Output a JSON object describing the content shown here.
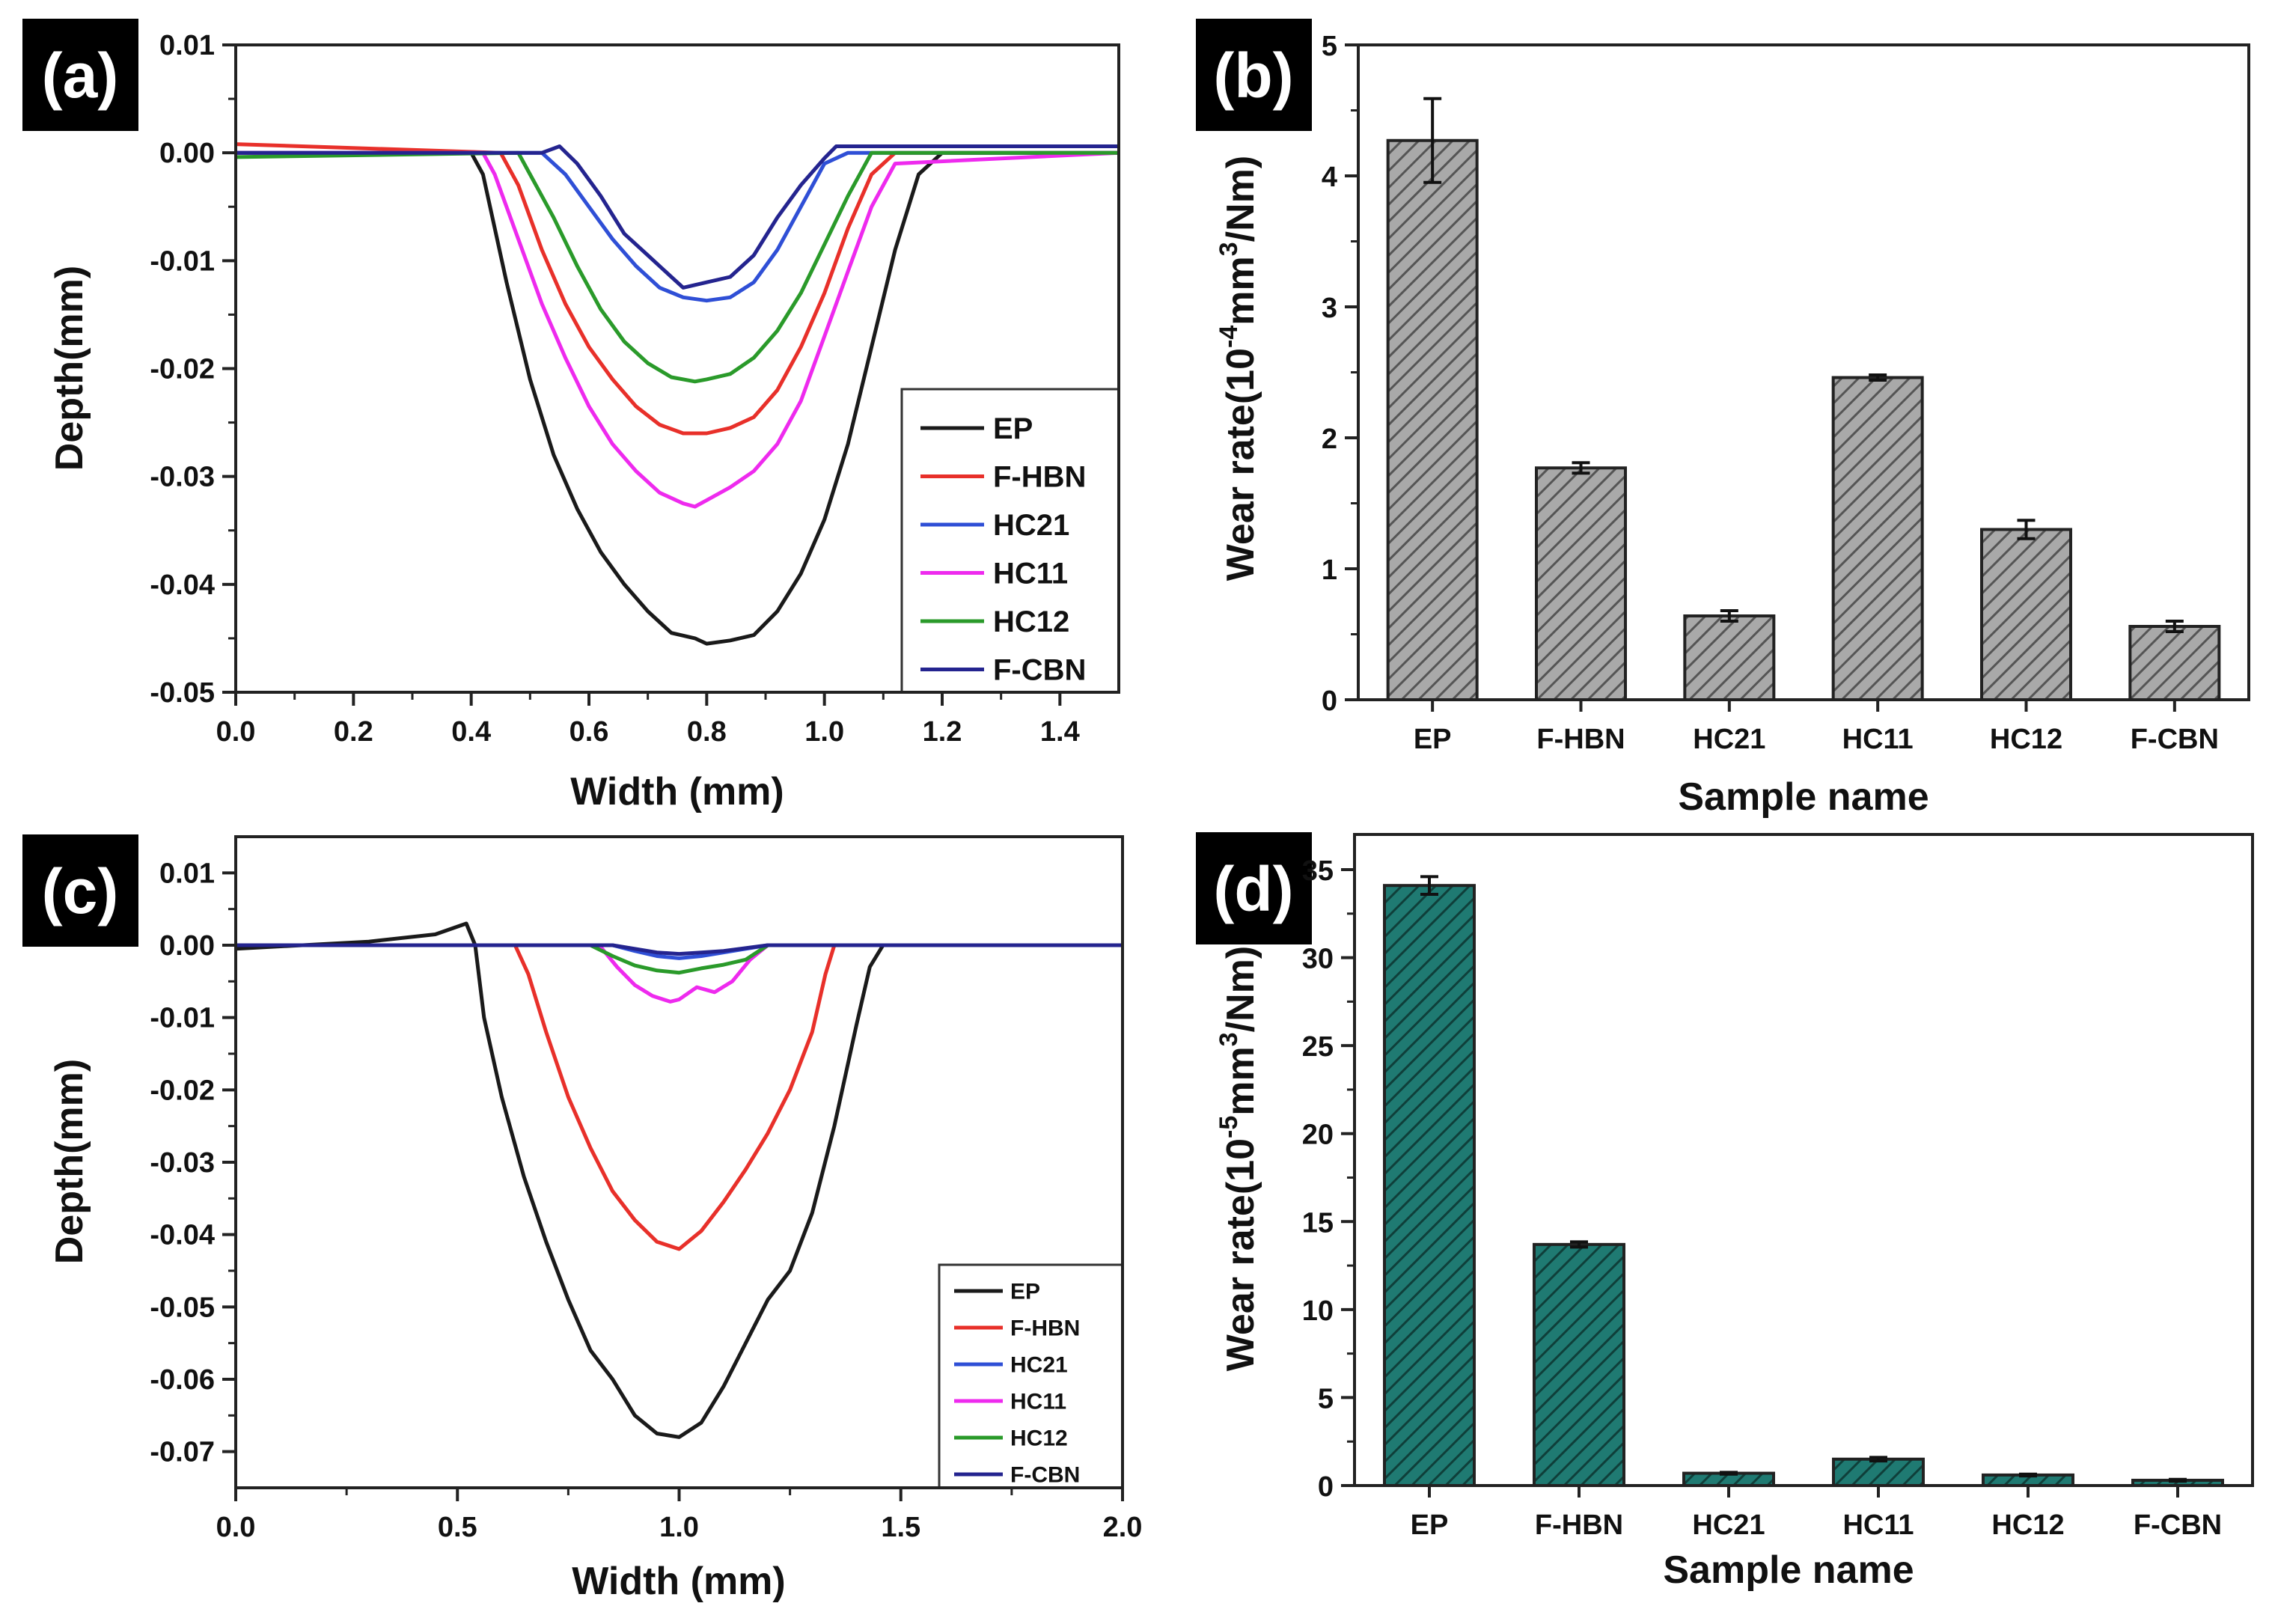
{
  "chart_data": [
    {
      "panel": "(a)",
      "type": "line",
      "xlabel": "Width (mm)",
      "ylabel": "Depth(mm)",
      "xlim": [
        0.0,
        1.5
      ],
      "ylim": [
        -0.05,
        0.01
      ],
      "xticks": [
        "0.0",
        "0.2",
        "0.4",
        "0.6",
        "0.8",
        "1.0",
        "1.2",
        "1.4"
      ],
      "yticks": [
        "0.01",
        "0.00",
        "-0.01",
        "-0.02",
        "-0.03",
        "-0.04",
        "-0.05"
      ],
      "xtick_values": [
        0.0,
        0.2,
        0.4,
        0.6,
        0.8,
        1.0,
        1.2,
        1.4
      ],
      "ytick_values": [
        0.01,
        0.0,
        -0.01,
        -0.02,
        -0.03,
        -0.04,
        -0.05
      ],
      "legend": "right",
      "series": [
        {
          "name": "EP",
          "color": "#1a1a1a",
          "x": [
            0.0,
            0.4,
            0.42,
            0.46,
            0.5,
            0.54,
            0.58,
            0.62,
            0.66,
            0.7,
            0.74,
            0.78,
            0.8,
            0.84,
            0.88,
            0.92,
            0.96,
            1.0,
            1.04,
            1.08,
            1.12,
            1.16,
            1.2,
            1.5
          ],
          "y": [
            0.0,
            0.0,
            -0.002,
            -0.012,
            -0.021,
            -0.028,
            -0.033,
            -0.037,
            -0.04,
            -0.0425,
            -0.0445,
            -0.045,
            -0.0455,
            -0.0452,
            -0.0447,
            -0.0425,
            -0.039,
            -0.034,
            -0.027,
            -0.018,
            -0.009,
            -0.002,
            0.0,
            0.0
          ]
        },
        {
          "name": "F-HBN",
          "color": "#e8302a",
          "x": [
            0.0,
            0.45,
            0.48,
            0.52,
            0.56,
            0.6,
            0.64,
            0.68,
            0.72,
            0.76,
            0.8,
            0.84,
            0.88,
            0.92,
            0.96,
            1.0,
            1.04,
            1.08,
            1.12,
            1.5
          ],
          "y": [
            0.0008,
            0.0,
            -0.003,
            -0.009,
            -0.014,
            -0.018,
            -0.021,
            -0.0235,
            -0.0252,
            -0.026,
            -0.026,
            -0.0255,
            -0.0245,
            -0.022,
            -0.018,
            -0.013,
            -0.007,
            -0.002,
            0.0,
            0.0
          ]
        },
        {
          "name": "HC21",
          "color": "#2f4fd6",
          "x": [
            0.0,
            0.52,
            0.56,
            0.6,
            0.64,
            0.68,
            0.72,
            0.76,
            0.8,
            0.84,
            0.88,
            0.92,
            0.96,
            1.0,
            1.04,
            1.5
          ],
          "y": [
            0.0,
            0.0,
            -0.002,
            -0.005,
            -0.008,
            -0.0105,
            -0.0125,
            -0.0134,
            -0.0137,
            -0.0134,
            -0.012,
            -0.009,
            -0.005,
            -0.001,
            0.0,
            0.0
          ]
        },
        {
          "name": "HC11",
          "color": "#ee2aee",
          "x": [
            0.0,
            0.42,
            0.44,
            0.48,
            0.52,
            0.56,
            0.6,
            0.64,
            0.68,
            0.72,
            0.76,
            0.78,
            0.8,
            0.84,
            0.88,
            0.92,
            0.96,
            1.0,
            1.04,
            1.08,
            1.12,
            1.5
          ],
          "y": [
            0.0,
            0.0,
            -0.002,
            -0.008,
            -0.014,
            -0.019,
            -0.0235,
            -0.027,
            -0.0295,
            -0.0315,
            -0.0325,
            -0.0328,
            -0.0322,
            -0.031,
            -0.0295,
            -0.027,
            -0.023,
            -0.017,
            -0.011,
            -0.005,
            -0.001,
            0.0
          ]
        },
        {
          "name": "HC12",
          "color": "#2a9a2a",
          "x": [
            0.0,
            0.48,
            0.5,
            0.54,
            0.58,
            0.62,
            0.66,
            0.7,
            0.74,
            0.78,
            0.8,
            0.84,
            0.88,
            0.92,
            0.96,
            1.0,
            1.04,
            1.08,
            1.5
          ],
          "y": [
            -0.0004,
            0.0,
            -0.002,
            -0.006,
            -0.0105,
            -0.0145,
            -0.0175,
            -0.0195,
            -0.0208,
            -0.0212,
            -0.021,
            -0.0205,
            -0.019,
            -0.0165,
            -0.013,
            -0.0085,
            -0.004,
            0.0,
            0.0
          ]
        },
        {
          "name": "F-CBN",
          "color": "#24248f",
          "x": [
            0.0,
            0.52,
            0.55,
            0.58,
            0.62,
            0.66,
            0.7,
            0.74,
            0.76,
            0.8,
            0.84,
            0.88,
            0.92,
            0.96,
            1.0,
            1.02,
            1.5
          ],
          "y": [
            0.0,
            0.0,
            0.0006,
            -0.001,
            -0.004,
            -0.0075,
            -0.0095,
            -0.0115,
            -0.0125,
            -0.012,
            -0.0115,
            -0.0095,
            -0.006,
            -0.003,
            -0.0005,
            0.0006,
            0.0006
          ]
        }
      ]
    },
    {
      "panel": "(b)",
      "type": "bar",
      "categories": [
        "EP",
        "F-HBN",
        "HC21",
        "HC11",
        "HC12",
        "F-CBN"
      ],
      "values": [
        4.27,
        1.77,
        0.64,
        2.46,
        1.3,
        0.56
      ],
      "errors": [
        0.32,
        0.04,
        0.04,
        0.02,
        0.07,
        0.04
      ],
      "xlabel": "Sample name",
      "ylabel_parts": [
        "Wear rate(10",
        "-4",
        "mm",
        "3",
        "/Nm)"
      ],
      "ylim": [
        0,
        5
      ],
      "yticks": [
        "0",
        "1",
        "2",
        "3",
        "4",
        "5"
      ],
      "ytick_values": [
        0,
        1,
        2,
        3,
        4,
        5
      ],
      "bar_color": "#a9a9a9",
      "hatch_color": "#555555"
    },
    {
      "panel": "(c)",
      "type": "line",
      "xlabel": "Width (mm)",
      "ylabel": "Depth(mm)",
      "xlim": [
        0.0,
        2.0
      ],
      "ylim": [
        -0.075,
        0.015
      ],
      "xticks": [
        "0.0",
        "0.5",
        "1.0",
        "1.5",
        "2.0"
      ],
      "yticks": [
        "0.01",
        "0.00",
        "-0.01",
        "-0.02",
        "-0.03",
        "-0.04",
        "-0.05",
        "-0.06",
        "-0.07"
      ],
      "xtick_values": [
        0.0,
        0.5,
        1.0,
        1.5,
        2.0
      ],
      "ytick_values": [
        0.01,
        0.0,
        -0.01,
        -0.02,
        -0.03,
        -0.04,
        -0.05,
        -0.06,
        -0.07
      ],
      "legend": "bottom-right",
      "series": [
        {
          "name": "EP",
          "color": "#1a1a1a",
          "x": [
            0.0,
            0.3,
            0.45,
            0.52,
            0.54,
            0.56,
            0.6,
            0.65,
            0.7,
            0.75,
            0.8,
            0.85,
            0.9,
            0.95,
            1.0,
            1.05,
            1.1,
            1.15,
            1.2,
            1.25,
            1.3,
            1.35,
            1.4,
            1.43,
            1.46,
            1.5,
            2.0
          ],
          "y": [
            -0.0005,
            0.0005,
            0.0015,
            0.003,
            0.0,
            -0.01,
            -0.021,
            -0.032,
            -0.041,
            -0.049,
            -0.056,
            -0.06,
            -0.065,
            -0.0675,
            -0.068,
            -0.066,
            -0.061,
            -0.055,
            -0.049,
            -0.045,
            -0.037,
            -0.025,
            -0.011,
            -0.003,
            0.0,
            0.0,
            0.0
          ]
        },
        {
          "name": "F-HBN",
          "color": "#e8302a",
          "x": [
            0.0,
            0.6,
            0.63,
            0.66,
            0.7,
            0.75,
            0.8,
            0.85,
            0.9,
            0.95,
            1.0,
            1.05,
            1.1,
            1.15,
            1.2,
            1.25,
            1.3,
            1.33,
            1.35,
            1.5,
            2.0
          ],
          "y": [
            0.0,
            0.0,
            0.0,
            -0.004,
            -0.012,
            -0.021,
            -0.028,
            -0.034,
            -0.038,
            -0.041,
            -0.042,
            -0.0395,
            -0.0355,
            -0.031,
            -0.026,
            -0.02,
            -0.012,
            -0.004,
            0.0,
            0.0,
            0.0
          ]
        },
        {
          "name": "HC21",
          "color": "#2f4fd6",
          "x": [
            0.0,
            0.85,
            0.9,
            0.95,
            1.0,
            1.05,
            1.1,
            1.15,
            1.2,
            2.0
          ],
          "y": [
            0.0,
            0.0,
            -0.0008,
            -0.0015,
            -0.0018,
            -0.0015,
            -0.001,
            -0.0005,
            0.0,
            0.0
          ]
        },
        {
          "name": "HC11",
          "color": "#ee2aee",
          "x": [
            0.0,
            0.82,
            0.86,
            0.9,
            0.94,
            0.98,
            1.0,
            1.04,
            1.08,
            1.12,
            1.16,
            1.2,
            2.0
          ],
          "y": [
            0.0,
            0.0,
            -0.003,
            -0.0055,
            -0.007,
            -0.0078,
            -0.0075,
            -0.0058,
            -0.0065,
            -0.005,
            -0.002,
            0.0,
            0.0
          ]
        },
        {
          "name": "HC12",
          "color": "#2a9a2a",
          "x": [
            0.0,
            0.8,
            0.85,
            0.9,
            0.95,
            1.0,
            1.05,
            1.1,
            1.15,
            1.2,
            2.0
          ],
          "y": [
            0.0,
            0.0,
            -0.0015,
            -0.0028,
            -0.0035,
            -0.0038,
            -0.0032,
            -0.0027,
            -0.002,
            0.0,
            0.0
          ]
        },
        {
          "name": "F-CBN",
          "color": "#24248f",
          "x": [
            0.0,
            0.85,
            0.9,
            0.95,
            1.0,
            1.05,
            1.1,
            1.15,
            1.2,
            2.0
          ],
          "y": [
            0.0,
            0.0,
            -0.0005,
            -0.001,
            -0.0012,
            -0.001,
            -0.0008,
            -0.0004,
            0.0,
            0.0
          ]
        }
      ]
    },
    {
      "panel": "(d)",
      "type": "bar",
      "categories": [
        "EP",
        "F-HBN",
        "HC21",
        "HC11",
        "HC12",
        "F-CBN"
      ],
      "values": [
        34.1,
        13.7,
        0.7,
        1.5,
        0.6,
        0.3
      ],
      "errors": [
        0.5,
        0.15,
        0.05,
        0.1,
        0.05,
        0.05
      ],
      "xlabel": "Sample name",
      "ylabel_parts": [
        "Wear rate(10",
        "-5",
        "mm",
        "3",
        "/Nm)"
      ],
      "ylim": [
        0,
        37
      ],
      "yticks": [
        "0",
        "5",
        "10",
        "15",
        "20",
        "25",
        "30",
        "35"
      ],
      "ytick_values": [
        0,
        5,
        10,
        15,
        20,
        25,
        30,
        35
      ],
      "bar_color": "#1f7a72",
      "hatch_color": "#0f3f3a"
    }
  ]
}
